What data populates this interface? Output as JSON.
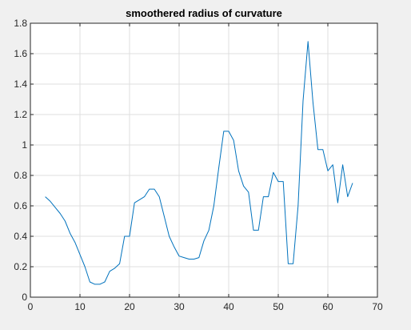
{
  "chart_data": {
    "type": "line",
    "title": "smoothered radius of curvature",
    "xlabel": "",
    "ylabel": "",
    "xlim": [
      0,
      70
    ],
    "ylim": [
      0,
      1.8
    ],
    "grid": true,
    "x_ticks": [
      "0",
      "10",
      "20",
      "30",
      "40",
      "50",
      "60",
      "70"
    ],
    "y_ticks": [
      "0",
      "0.2",
      "0.4",
      "0.6",
      "0.8",
      "1",
      "1.2",
      "1.4",
      "1.6",
      "1.8"
    ],
    "series": [
      {
        "color": "#0072bd",
        "x": [
          3,
          4,
          5,
          6,
          7,
          8,
          9,
          10,
          11,
          12,
          13,
          14,
          15,
          16,
          17,
          18,
          19,
          20,
          21,
          22,
          23,
          24,
          25,
          26,
          27,
          28,
          29,
          30,
          31,
          32,
          33,
          34,
          35,
          36,
          37,
          38,
          39,
          40,
          41,
          42,
          43,
          44,
          45,
          46,
          47,
          48,
          49,
          50,
          51,
          52,
          53,
          54,
          55,
          56,
          57,
          58,
          59,
          60,
          61,
          62,
          63,
          64,
          65
        ],
        "y": [
          0.66,
          0.63,
          0.59,
          0.55,
          0.5,
          0.42,
          0.36,
          0.28,
          0.2,
          0.1,
          0.085,
          0.085,
          0.1,
          0.17,
          0.19,
          0.22,
          0.4,
          0.4,
          0.62,
          0.64,
          0.66,
          0.71,
          0.71,
          0.66,
          0.53,
          0.4,
          0.33,
          0.27,
          0.26,
          0.25,
          0.25,
          0.26,
          0.37,
          0.44,
          0.6,
          0.85,
          1.09,
          1.09,
          1.03,
          0.83,
          0.73,
          0.69,
          0.44,
          0.44,
          0.66,
          0.66,
          0.82,
          0.76,
          0.76,
          0.22,
          0.22,
          0.6,
          1.29,
          1.68,
          1.28,
          0.97,
          0.97,
          0.83,
          0.87,
          0.62,
          0.87,
          0.66,
          0.75
        ]
      }
    ]
  }
}
